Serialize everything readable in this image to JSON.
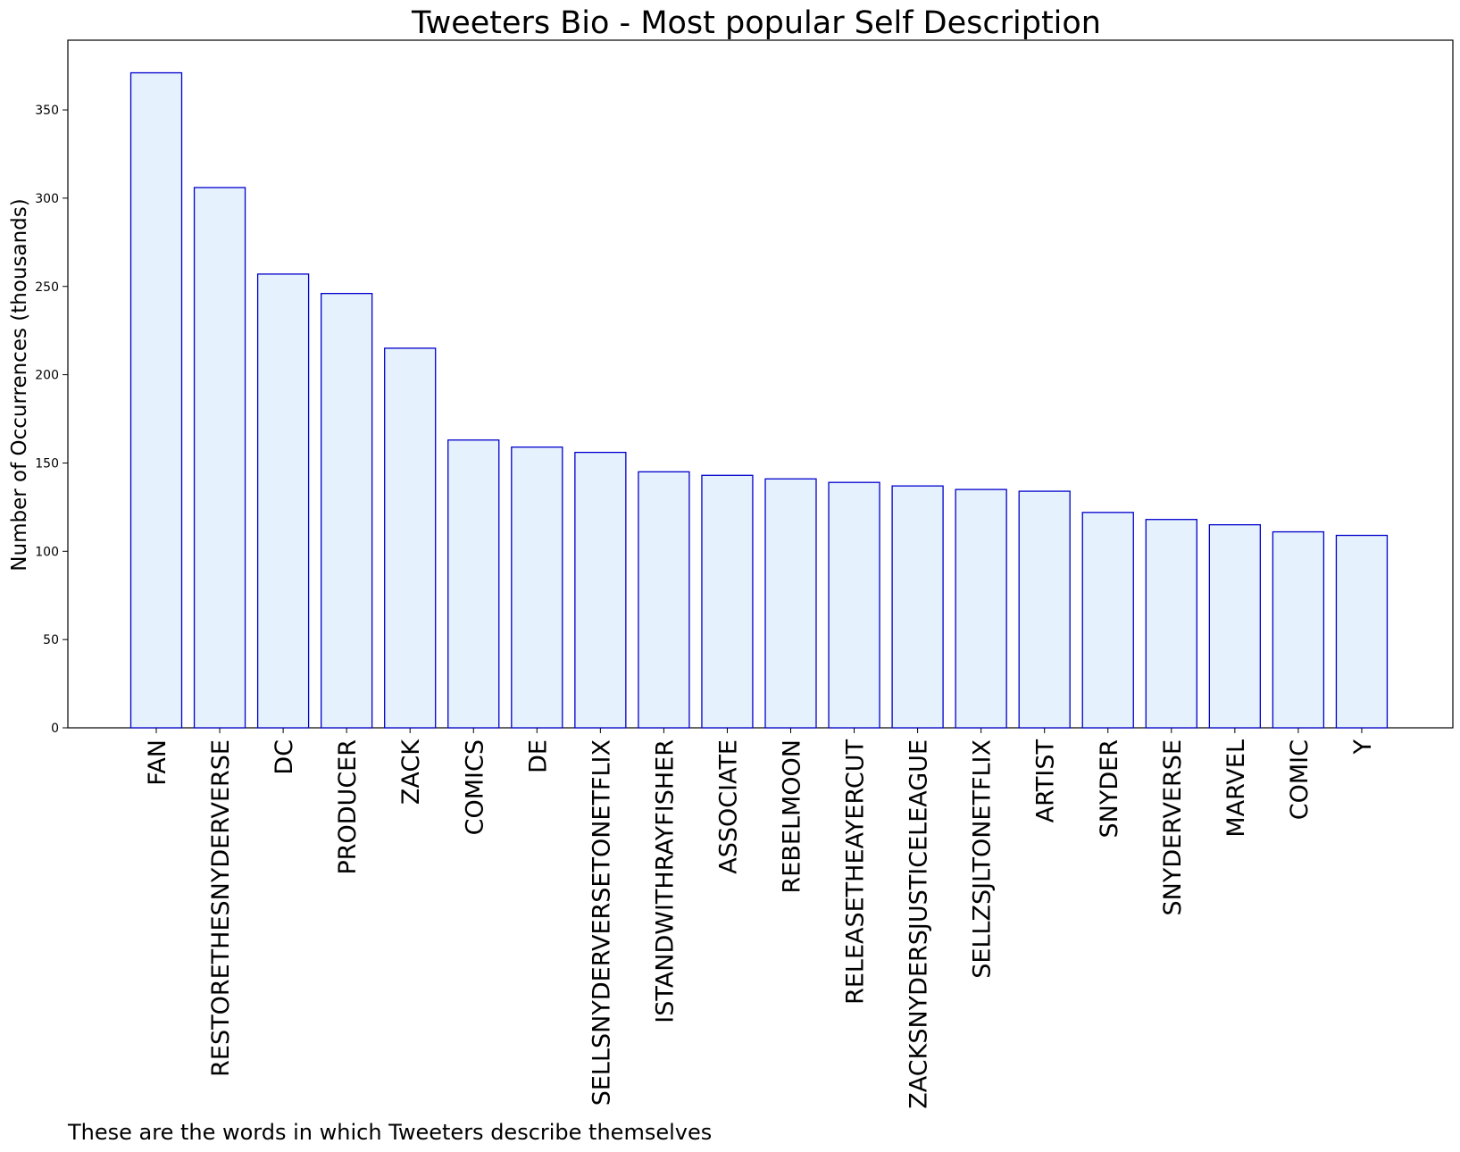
{
  "chart_data": {
    "type": "bar",
    "title": "Tweeters Bio - Most popular Self Description",
    "xlabel": "",
    "ylabel": "Number of Occurrences (thousands)",
    "caption": "These are the words in which Tweeters describe themselves",
    "categories": [
      "FAN",
      "RESTORETHESNYDERVERSE",
      "DC",
      "PRODUCER",
      "ZACK",
      "COMICS",
      "DE",
      "SELLSNYDERVERSETONETFLIX",
      "ISTANDWITHRAYFISHER",
      "ASSOCIATE",
      "REBELMOON",
      "RELEASETHEAYERCUT",
      "ZACKSNYDERSJUSTICELEAGUE",
      "SELLZSJLTONETFLIX",
      "ARTIST",
      "SNYDER",
      "SNYDERVERSE",
      "MARVEL",
      "COMIC",
      "Y"
    ],
    "values": [
      371,
      306,
      257,
      246,
      215,
      163,
      159,
      156,
      145,
      143,
      141,
      139,
      137,
      135,
      134,
      122,
      118,
      115,
      111,
      109
    ],
    "ylim": [
      0,
      390
    ],
    "yticks": [
      0,
      50,
      100,
      150,
      200,
      250,
      300,
      350
    ],
    "grid": false,
    "legend": "none",
    "colors": {
      "bar_fill": "#e5f1fd",
      "bar_edge": "#0000cc"
    }
  }
}
